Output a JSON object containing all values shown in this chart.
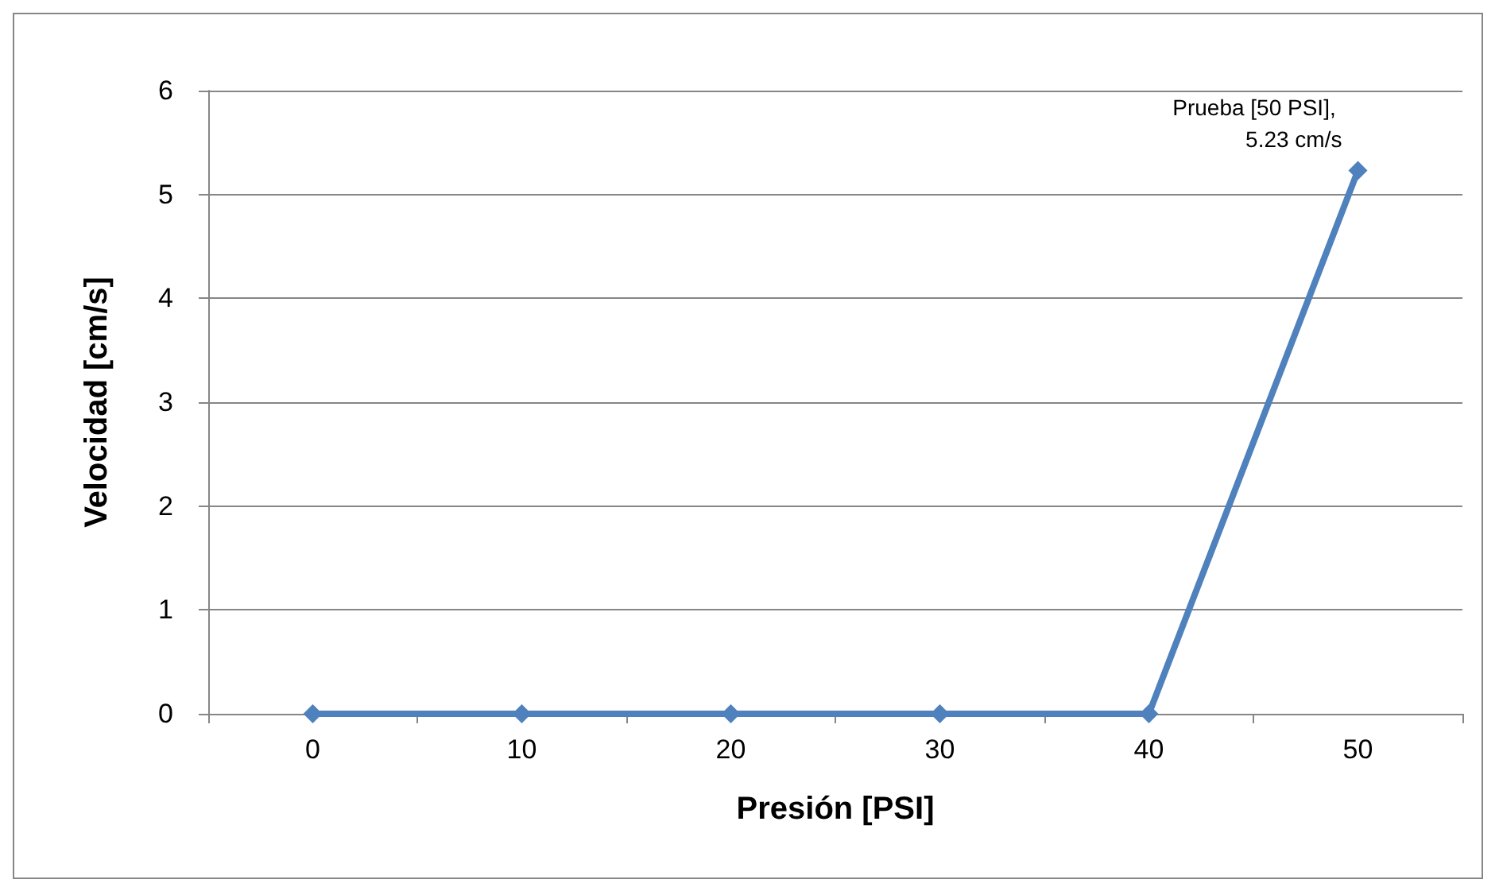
{
  "chart_data": {
    "type": "line",
    "xlabel": "Presión [PSI]",
    "ylabel": "Velocidad [cm/s]",
    "categories": [
      "0",
      "10",
      "20",
      "30",
      "40",
      "50"
    ],
    "series": [
      {
        "color": "#4f81bd",
        "values": [
          0,
          0,
          0,
          0,
          0,
          5.23
        ]
      }
    ],
    "ylim": [
      0,
      6
    ],
    "yticks": [
      0,
      1,
      2,
      3,
      4,
      5,
      6
    ],
    "grid": "y",
    "marker": "diamond",
    "line_style": "solid",
    "annotations": [
      {
        "text": "Prueba [50 PSI], 5.23 cm/s",
        "x": "50",
        "y": 5.23
      }
    ]
  }
}
